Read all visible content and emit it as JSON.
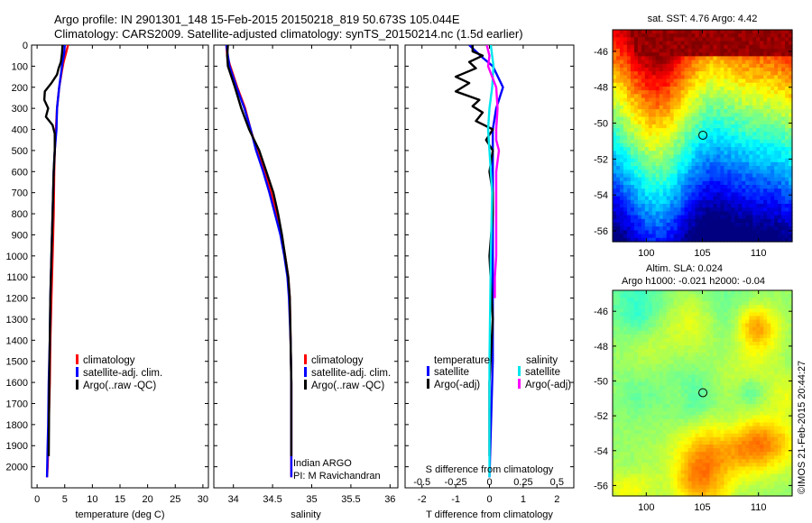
{
  "header": {
    "line1": "Argo profile: IN 2901301_148 15-Feb-2015 20150218_819 50.673S 105.044E",
    "line2": "Climatology: CARS2009. Satellite-adjusted climatology: synTS_20150214.nc (1.5d earlier)"
  },
  "credit": "©IMOS 21-Feb-2015 20:44:27",
  "colors": {
    "clim": "#ff0000",
    "sat": "#0000ff",
    "argo": "#000000",
    "sat_s": "#00e5ee",
    "argo_s": "#ff00ff"
  },
  "chart_data": [
    {
      "type": "line",
      "xlabel": "temperature (deg C)",
      "xlim": [
        -1,
        31
      ],
      "ylim": [
        0,
        2100
      ],
      "y_reversed": true,
      "xticks": [
        0,
        5,
        10,
        15,
        20,
        25,
        30
      ],
      "yticks": [
        0,
        100,
        200,
        300,
        400,
        500,
        600,
        700,
        800,
        900,
        1000,
        1100,
        1200,
        1300,
        1400,
        1500,
        1600,
        1700,
        1800,
        1900,
        2000
      ],
      "legend": [
        "climatology",
        "satellite-adj. clim.",
        "Argo(..raw -QC)"
      ],
      "series": [
        {
          "name": "climatology",
          "color": "#ff0000",
          "x": [
            5.6,
            5.2,
            4.8,
            4.5,
            4.0,
            3.6,
            3.4,
            3.2,
            3.1,
            3.0,
            2.8,
            2.6,
            2.4,
            2.3,
            2.1,
            2.0,
            1.9,
            1.8
          ],
          "y": [
            0,
            40,
            80,
            120,
            200,
            300,
            400,
            500,
            600,
            800,
            1000,
            1200,
            1400,
            1600,
            1800,
            1900,
            2000,
            2050
          ]
        },
        {
          "name": "satellite-adj. clim.",
          "color": "#0000ff",
          "x": [
            5.0,
            4.9,
            4.6,
            4.4,
            4.0,
            3.6,
            3.5,
            3.2,
            3.0,
            2.8,
            2.6,
            2.4,
            2.3,
            2.1,
            2.0,
            1.9,
            1.8
          ],
          "y": [
            0,
            40,
            80,
            120,
            200,
            300,
            400,
            500,
            600,
            800,
            1000,
            1200,
            1400,
            1600,
            1800,
            1900,
            2050
          ]
        },
        {
          "name": "Argo(..raw -QC)",
          "color": "#000000",
          "x": [
            4.6,
            4.5,
            4.3,
            3.9,
            3.6,
            2.6,
            1.4,
            1.3,
            2.0,
            1.6,
            2.8,
            3.2,
            3.2,
            3.0,
            2.8,
            2.6,
            2.4,
            2.3,
            2.2,
            2.1
          ],
          "y": [
            0,
            40,
            80,
            110,
            140,
            180,
            220,
            260,
            300,
            340,
            380,
            420,
            500,
            600,
            800,
            1000,
            1200,
            1400,
            1600,
            1950
          ]
        }
      ]
    },
    {
      "type": "line",
      "xlabel": "salinity",
      "xlim": [
        33.75,
        36.1
      ],
      "ylim": [
        0,
        2100
      ],
      "y_reversed": true,
      "xticks": [
        34,
        34.5,
        35,
        35.5,
        36
      ],
      "legend": [
        "climatology",
        "satellite-adj. clim.",
        "Argo(..raw -QC)"
      ],
      "annotation": [
        "Indian ARGO",
        "PI: M Ravichandran"
      ],
      "series": [
        {
          "name": "climatology",
          "color": "#ff0000",
          "x": [
            33.91,
            33.92,
            33.96,
            34.05,
            34.15,
            34.22,
            34.3,
            34.4,
            34.48,
            34.55,
            34.61,
            34.66,
            34.7,
            34.72,
            34.73,
            34.74,
            34.74,
            34.74
          ],
          "y": [
            0,
            50,
            100,
            200,
            300,
            400,
            500,
            600,
            700,
            800,
            900,
            1000,
            1100,
            1200,
            1400,
            1600,
            1800,
            2050
          ]
        },
        {
          "name": "satellite-adj. clim.",
          "color": "#0000ff",
          "x": [
            33.91,
            33.93,
            33.95,
            34.04,
            34.14,
            34.22,
            34.29,
            34.38,
            34.46,
            34.53,
            34.6,
            34.65,
            34.69,
            34.71,
            34.73,
            34.74,
            34.74,
            34.74
          ],
          "y": [
            0,
            50,
            100,
            200,
            300,
            400,
            500,
            600,
            700,
            800,
            900,
            1000,
            1100,
            1200,
            1400,
            1600,
            1800,
            2050
          ]
        },
        {
          "name": "Argo(..raw -QC)",
          "color": "#000000",
          "x": [
            33.93,
            33.92,
            33.93,
            34.02,
            34.1,
            34.2,
            34.33,
            34.42,
            34.51,
            34.57,
            34.62,
            34.66,
            34.7,
            34.72,
            34.73,
            34.74,
            34.74
          ],
          "y": [
            0,
            50,
            100,
            200,
            300,
            400,
            500,
            600,
            700,
            800,
            900,
            1000,
            1100,
            1200,
            1400,
            1600,
            1950
          ]
        }
      ]
    },
    {
      "type": "line",
      "xlabel": "T difference from climatology",
      "xlabel_top": "S difference from climatology",
      "xlim": [
        -2.5,
        2.5
      ],
      "ylim": [
        0,
        2100
      ],
      "y_reversed": true,
      "xticks": [
        -2,
        -1,
        0,
        1,
        2
      ],
      "s_xlim": [
        -0.625,
        0.625
      ],
      "s_xticks": [
        -0.5,
        -0.25,
        0,
        0.25,
        0.5
      ],
      "legend_t_title": "temperature",
      "legend_s_title": "salinity",
      "legend": [
        "satellite",
        "Argo(-adj)",
        "satellite",
        "Argo(-adj)"
      ],
      "series": [
        {
          "name": "satellite",
          "quantity": "T",
          "color": "#0000ff",
          "x": [
            -0.6,
            -0.4,
            -0.2,
            0.1,
            0.4,
            0.2,
            0.1,
            0.1,
            0.1,
            0.1,
            0.1,
            0.0
          ],
          "y": [
            0,
            30,
            60,
            100,
            200,
            300,
            400,
            500,
            700,
            1000,
            1500,
            2050
          ]
        },
        {
          "name": "Argo(-adj)",
          "quantity": "T",
          "color": "#000000",
          "x": [
            -0.5,
            -0.5,
            -0.2,
            -0.6,
            -0.4,
            -1.0,
            -0.6,
            -1.0,
            -0.3,
            -0.5,
            -0.2,
            -0.4,
            0.1,
            -0.1,
            0.1,
            0.0,
            0.1,
            0.1,
            0.0,
            0.1,
            0.0,
            0.0
          ],
          "y": [
            0,
            30,
            50,
            80,
            110,
            150,
            180,
            220,
            260,
            290,
            320,
            360,
            400,
            450,
            500,
            600,
            700,
            800,
            1000,
            1300,
            1600,
            1950
          ]
        },
        {
          "name": "satellite",
          "quantity": "S",
          "color": "#00e5ee",
          "x": [
            0.01,
            0.03,
            0.02,
            0.0,
            -0.01,
            0.0,
            0.02,
            0.01,
            0.0,
            0.0
          ],
          "y": [
            0,
            100,
            200,
            300,
            400,
            500,
            700,
            1000,
            1500,
            2050
          ]
        },
        {
          "name": "Argo(-adj)",
          "quantity": "S",
          "color": "#ff00ff",
          "x": [
            -0.02,
            0.0,
            -0.01,
            0.05,
            0.06,
            0.05,
            0.05,
            0.07,
            0.05,
            0.05,
            0.05,
            0.05,
            0.05,
            0.04,
            0.04
          ],
          "y": [
            0,
            50,
            100,
            200,
            300,
            400,
            450,
            500,
            600,
            700,
            800,
            900,
            1000,
            1100,
            1200
          ]
        }
      ]
    },
    {
      "type": "heatmap",
      "title": "sat. SST: 4.76  Argo: 4.42",
      "xticks": [
        100,
        105,
        110
      ],
      "yticks": [
        -46,
        -48,
        -50,
        -52,
        -54,
        -56
      ],
      "xlim": [
        97,
        113
      ],
      "ylim": [
        -56.6,
        -44.8
      ],
      "marker": {
        "lon": 105.044,
        "lat": -50.673
      }
    },
    {
      "type": "heatmap",
      "title": "Altim. SLA: 0.024",
      "subtitle": "Argo h1000: -0.021 h2000: -0.04",
      "xticks": [
        100,
        105,
        110
      ],
      "yticks": [
        -46,
        -48,
        -50,
        -52,
        -54,
        -56
      ],
      "xlim": [
        97,
        113
      ],
      "ylim": [
        -56.6,
        -44.8
      ],
      "marker": {
        "lon": 105.044,
        "lat": -50.673
      }
    }
  ]
}
